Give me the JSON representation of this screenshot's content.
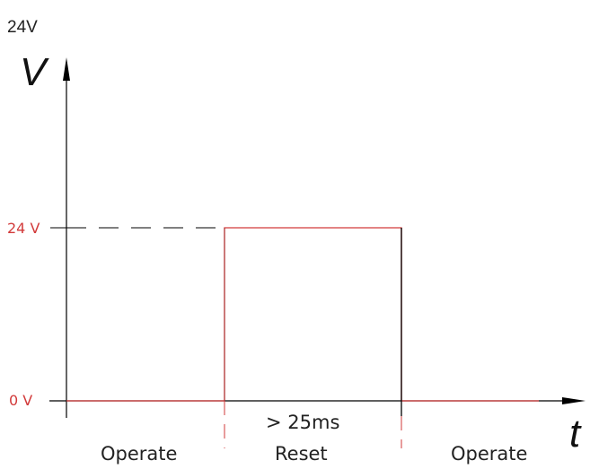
{
  "page_label": "24V",
  "axes": {
    "y_label": "V",
    "x_label": "t"
  },
  "levels": {
    "high": "24 V",
    "low": "0 V"
  },
  "duration_label": "> 25ms",
  "phases": [
    "Operate",
    "Reset",
    "Operate"
  ],
  "colors": {
    "signal": "#d23a3a",
    "axis": "#000000",
    "marker": "#d23a3a",
    "level_text": "#d23a3a",
    "text": "#222222"
  },
  "icons": {
    "x_axis_arrow": "arrow-right-icon",
    "y_axis_arrow": "arrow-up-icon"
  }
}
